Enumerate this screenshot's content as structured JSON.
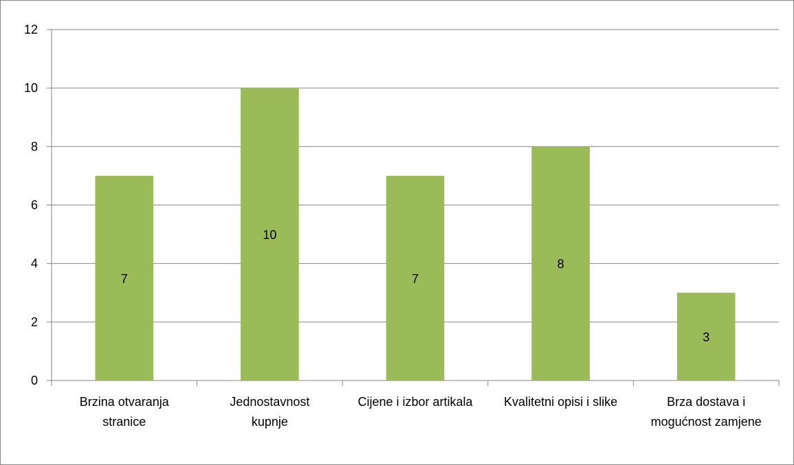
{
  "chart_data": {
    "type": "bar",
    "categories": [
      "Brzina otvaranja stranice",
      "Jednostavnost kupnje",
      "Cijene i izbor artikala",
      "Kvalitetni opisi i slike",
      "Brza dostava i mogućnost zamjene"
    ],
    "values": [
      7,
      10,
      7,
      8,
      3
    ],
    "color": "#9bbb59",
    "ylim": [
      0,
      12
    ],
    "yticks": [
      0,
      2,
      4,
      6,
      8,
      10,
      12
    ],
    "grid": true
  }
}
